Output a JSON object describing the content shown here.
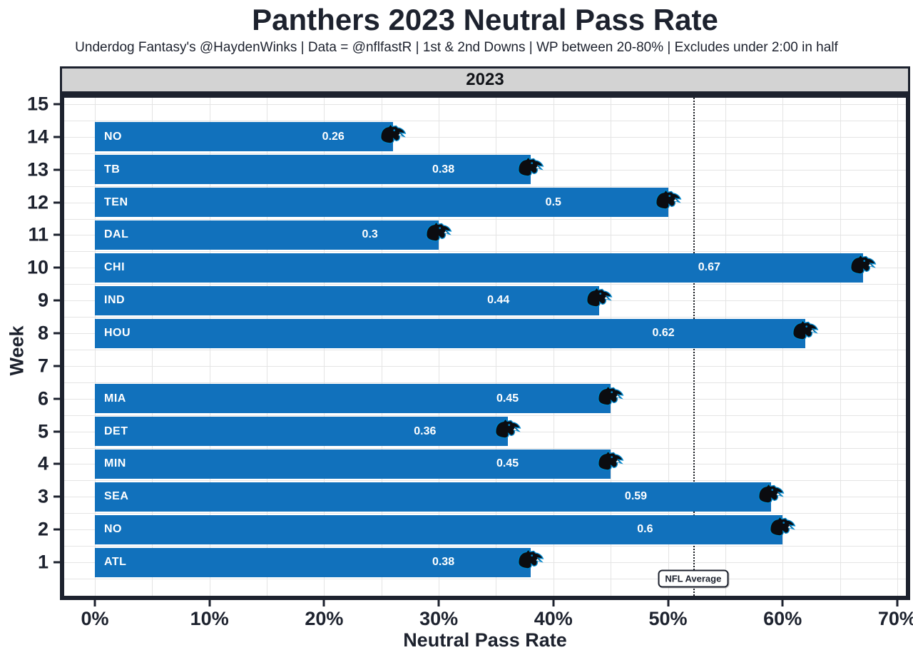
{
  "header": {
    "title": "Panthers 2023 Neutral Pass Rate",
    "subtitle": "Underdog Fantasy's @HaydenWinks | Data = @nflfastR | 1st & 2nd Downs | WP between 20-80% | Excludes under 2:00 in half"
  },
  "chart_data": {
    "type": "bar",
    "orientation": "horizontal",
    "title": "Panthers 2023 Neutral Pass Rate",
    "subtitle": "Underdog Fantasy's @HaydenWinks | Data = @nflfastR | 1st & 2nd Downs | WP between 20-80% | Excludes under 2:00 in half",
    "facet_label": "2023",
    "xlabel": "Neutral Pass Rate",
    "ylabel": "Week",
    "xlim": [
      0,
      0.7
    ],
    "grid": true,
    "legend": "none",
    "x_axis": {
      "tick_values": [
        0,
        0.1,
        0.2,
        0.3,
        0.4,
        0.5,
        0.6,
        0.7
      ],
      "tick_labels": [
        "0%",
        "10%",
        "20%",
        "30%",
        "40%",
        "50%",
        "60%",
        "70%"
      ],
      "minor_grid_step": 0.05
    },
    "y_axis": {
      "tick_labels": [
        "15",
        "14",
        "13",
        "12",
        "11",
        "10",
        "9",
        "8",
        "7",
        "6",
        "5",
        "4",
        "3",
        "2",
        "1"
      ]
    },
    "rows": [
      {
        "week": 15,
        "opponent": null,
        "value": null,
        "value_label": null
      },
      {
        "week": 14,
        "opponent": "NO",
        "value": 0.26,
        "value_label": "0.26"
      },
      {
        "week": 13,
        "opponent": "TB",
        "value": 0.38,
        "value_label": "0.38"
      },
      {
        "week": 12,
        "opponent": "TEN",
        "value": 0.5,
        "value_label": "0.5"
      },
      {
        "week": 11,
        "opponent": "DAL",
        "value": 0.3,
        "value_label": "0.3"
      },
      {
        "week": 10,
        "opponent": "CHI",
        "value": 0.67,
        "value_label": "0.67"
      },
      {
        "week": 9,
        "opponent": "IND",
        "value": 0.44,
        "value_label": "0.44"
      },
      {
        "week": 8,
        "opponent": "HOU",
        "value": 0.62,
        "value_label": "0.62"
      },
      {
        "week": 7,
        "opponent": null,
        "value": null,
        "value_label": null
      },
      {
        "week": 6,
        "opponent": "MIA",
        "value": 0.45,
        "value_label": "0.45"
      },
      {
        "week": 5,
        "opponent": "DET",
        "value": 0.36,
        "value_label": "0.36"
      },
      {
        "week": 4,
        "opponent": "MIN",
        "value": 0.45,
        "value_label": "0.45"
      },
      {
        "week": 3,
        "opponent": "SEA",
        "value": 0.59,
        "value_label": "0.59"
      },
      {
        "week": 2,
        "opponent": "NO",
        "value": 0.6,
        "value_label": "0.6"
      },
      {
        "week": 1,
        "opponent": "ATL",
        "value": 0.38,
        "value_label": "0.38"
      }
    ],
    "reference_line": {
      "value": 0.522,
      "label": "NFL Average",
      "style": "dotted"
    },
    "bar_icon": "carolina-panthers-logo",
    "colors": {
      "bar": "#1171BC",
      "text_dark": "#1d222e",
      "grid": "#e4e4e4",
      "strip_bg": "#d3d3d3",
      "logo_blue": "#0085CA",
      "bar_label_text": "#ffffff"
    }
  }
}
